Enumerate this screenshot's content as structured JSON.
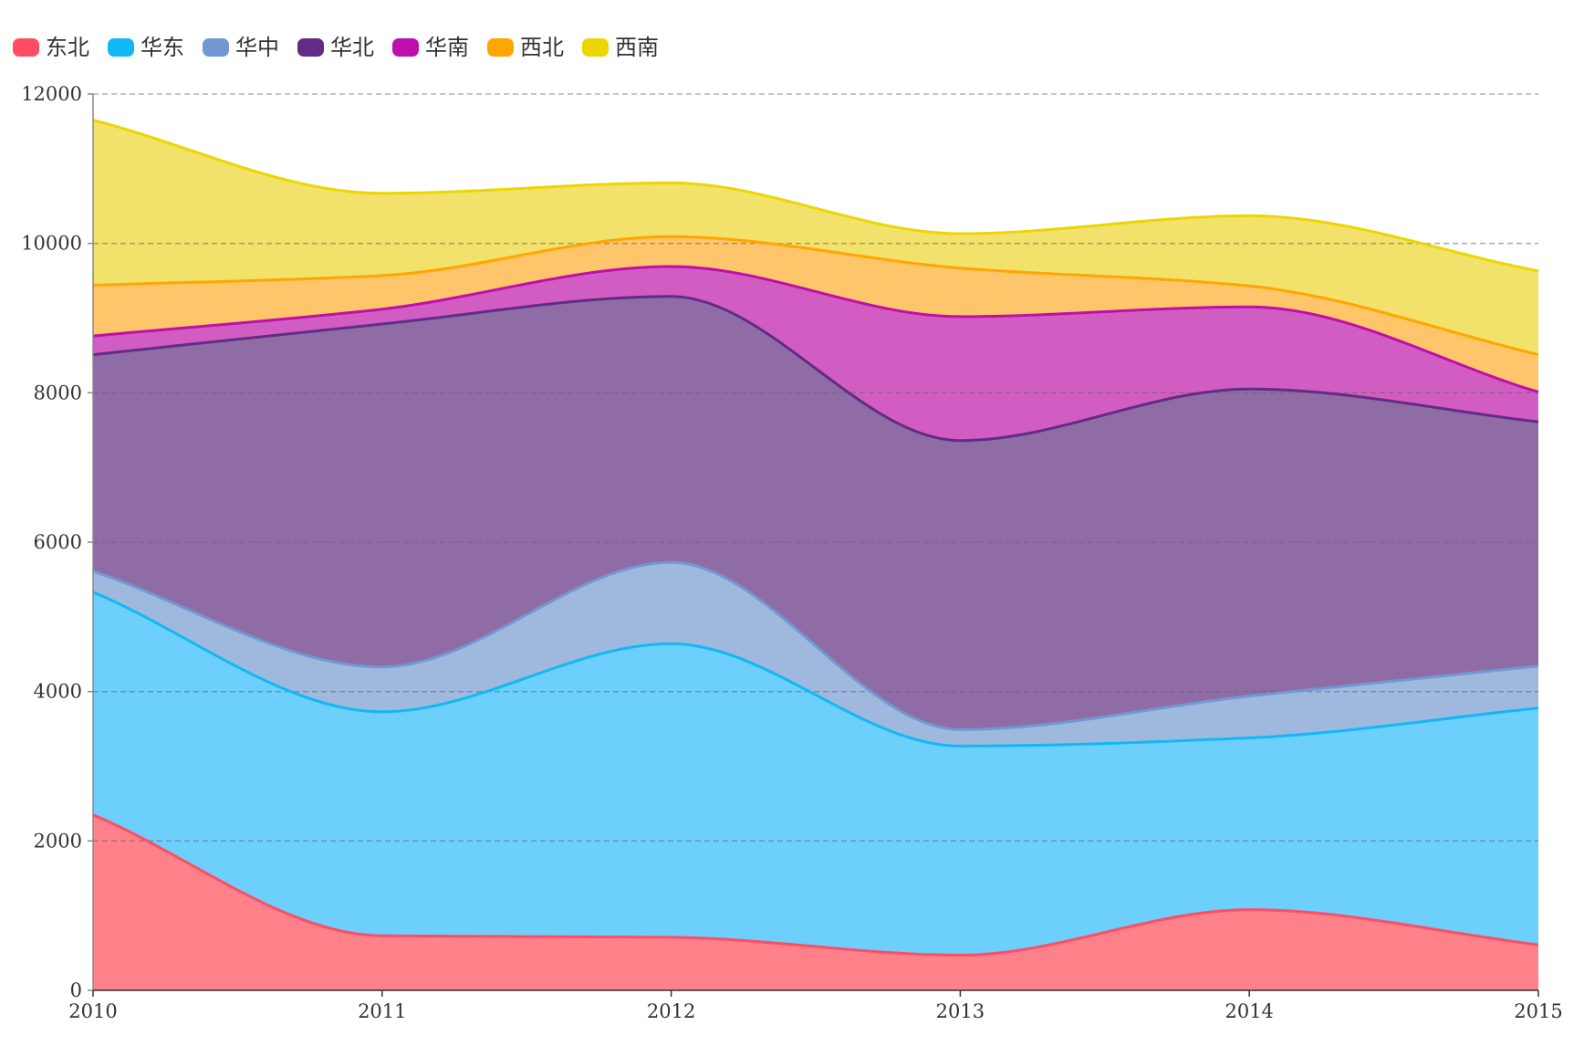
{
  "chart_data": {
    "type": "area",
    "stacked": true,
    "smooth": true,
    "title": "",
    "xlabel": "",
    "ylabel": "",
    "x": [
      "2010",
      "2011",
      "2012",
      "2013",
      "2014",
      "2015"
    ],
    "ylim": [
      0,
      12000
    ],
    "yticks": [
      0,
      2000,
      4000,
      6000,
      8000,
      10000,
      12000
    ],
    "grid": "horizontal-dashed",
    "legend_position": "top-left",
    "series": [
      {
        "name": "东北",
        "color": "#ff4e64",
        "fill": "#ff8189",
        "values": [
          2350,
          730,
          710,
          470,
          1080,
          610
        ]
      },
      {
        "name": "华东",
        "color": "#12b8f5",
        "fill": "#6ccffc",
        "values": [
          2980,
          3000,
          3930,
          2800,
          2300,
          3170
        ]
      },
      {
        "name": "华中",
        "color": "#7298d2",
        "fill": "#9fb8de",
        "values": [
          280,
          600,
          1090,
          220,
          560,
          560
        ]
      },
      {
        "name": "华北",
        "color": "#632c84",
        "fill": "#906ca7",
        "values": [
          2900,
          4590,
          3560,
          3870,
          4110,
          3270
        ]
      },
      {
        "name": "华南",
        "color": "#bd0fab",
        "fill": "#d25dc2",
        "values": [
          250,
          200,
          400,
          1660,
          1100,
          400
        ]
      },
      {
        "name": "西北",
        "color": "#ffa600",
        "fill": "#ffc56b",
        "values": [
          680,
          450,
          400,
          650,
          280,
          500
        ]
      },
      {
        "name": "西南",
        "color": "#ebd600",
        "fill": "#f2e26b",
        "values": [
          2210,
          1100,
          720,
          460,
          940,
          1120
        ]
      }
    ]
  }
}
